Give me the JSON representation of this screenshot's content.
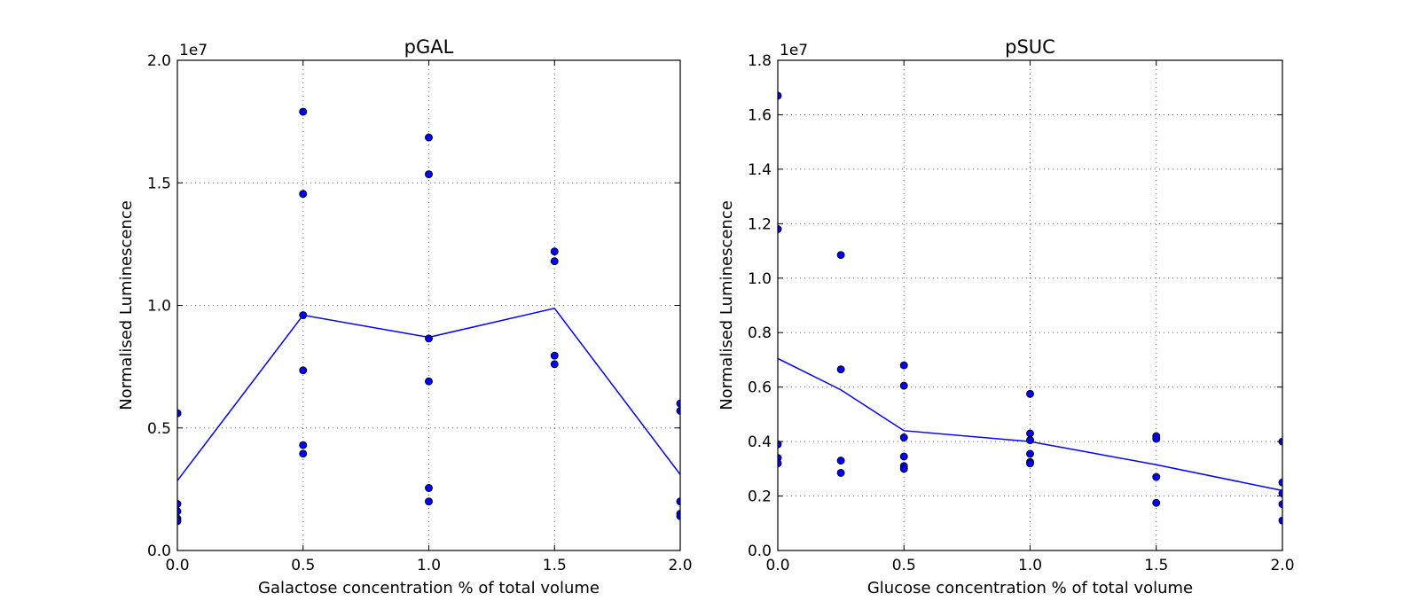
{
  "chart_data": [
    {
      "type": "scatter",
      "title": "pGAL",
      "xlabel": "Galactose concentration % of total volume",
      "ylabel": "Normalised Luminescence",
      "y_offset_label": "1e7",
      "xlim": [
        0.0,
        2.0
      ],
      "ylim": [
        0.0,
        2.0
      ],
      "x_ticks": [
        "0.0",
        "0.5",
        "1.0",
        "1.5",
        "2.0"
      ],
      "y_ticks": [
        "0.0",
        "0.5",
        "1.0",
        "1.5",
        "2.0"
      ],
      "grid": true,
      "series": [
        {
          "style": "markers",
          "color": "#0000ff",
          "points": [
            [
              0.0,
              0.56
            ],
            [
              0.0,
              0.56
            ],
            [
              0.0,
              0.19
            ],
            [
              0.0,
              0.16
            ],
            [
              0.0,
              0.13
            ],
            [
              0.0,
              0.12
            ],
            [
              0.5,
              1.79
            ],
            [
              0.5,
              1.455
            ],
            [
              0.5,
              0.96
            ],
            [
              0.5,
              0.735
            ],
            [
              0.5,
              0.43
            ],
            [
              0.5,
              0.395
            ],
            [
              1.0,
              1.685
            ],
            [
              1.0,
              1.535
            ],
            [
              1.0,
              0.865
            ],
            [
              1.0,
              0.69
            ],
            [
              1.0,
              0.255
            ],
            [
              1.0,
              0.2
            ],
            [
              1.5,
              1.22
            ],
            [
              1.5,
              1.18
            ],
            [
              1.5,
              0.795
            ],
            [
              1.5,
              0.76
            ],
            [
              2.0,
              0.6
            ],
            [
              2.0,
              0.57
            ],
            [
              2.0,
              0.2
            ],
            [
              2.0,
              0.15
            ],
            [
              2.0,
              0.14
            ]
          ]
        },
        {
          "style": "line",
          "color": "#0000ff",
          "x": [
            0.0,
            0.5,
            1.0,
            1.5,
            2.0
          ],
          "y": [
            0.285,
            0.96,
            0.87,
            0.988,
            0.31
          ]
        }
      ]
    },
    {
      "type": "scatter",
      "title": "pSUC",
      "xlabel": "Glucose concentration % of total volume",
      "ylabel": "Normalised Luminescence",
      "y_offset_label": "1e7",
      "xlim": [
        0.0,
        2.0
      ],
      "ylim": [
        0.0,
        1.8
      ],
      "x_ticks": [
        "0.0",
        "0.5",
        "1.0",
        "1.5",
        "2.0"
      ],
      "y_ticks": [
        "0.0",
        "0.2",
        "0.4",
        "0.6",
        "0.8",
        "1.0",
        "1.2",
        "1.4",
        "1.6",
        "1.8"
      ],
      "grid": true,
      "series": [
        {
          "style": "markers",
          "color": "#0000ff",
          "points": [
            [
              0.0,
              1.67
            ],
            [
              0.0,
              1.18
            ],
            [
              0.0,
              0.39
            ],
            [
              0.0,
              0.34
            ],
            [
              0.0,
              0.32
            ],
            [
              0.25,
              1.085
            ],
            [
              0.25,
              0.665
            ],
            [
              0.25,
              0.33
            ],
            [
              0.25,
              0.285
            ],
            [
              0.5,
              0.68
            ],
            [
              0.5,
              0.605
            ],
            [
              0.5,
              0.415
            ],
            [
              0.5,
              0.345
            ],
            [
              0.5,
              0.31
            ],
            [
              0.5,
              0.3
            ],
            [
              1.0,
              0.575
            ],
            [
              1.0,
              0.43
            ],
            [
              1.0,
              0.405
            ],
            [
              1.0,
              0.355
            ],
            [
              1.0,
              0.325
            ],
            [
              1.0,
              0.32
            ],
            [
              1.5,
              0.42
            ],
            [
              1.5,
              0.41
            ],
            [
              1.5,
              0.27
            ],
            [
              1.5,
              0.175
            ],
            [
              2.0,
              0.4
            ],
            [
              2.0,
              0.25
            ],
            [
              2.0,
              0.21
            ],
            [
              2.0,
              0.17
            ],
            [
              2.0,
              0.11
            ]
          ]
        },
        {
          "style": "line",
          "color": "#0000ff",
          "x": [
            0.0,
            0.25,
            0.5,
            1.0,
            1.5,
            2.0
          ],
          "y": [
            0.705,
            0.59,
            0.44,
            0.4,
            0.315,
            0.22
          ]
        }
      ]
    }
  ]
}
